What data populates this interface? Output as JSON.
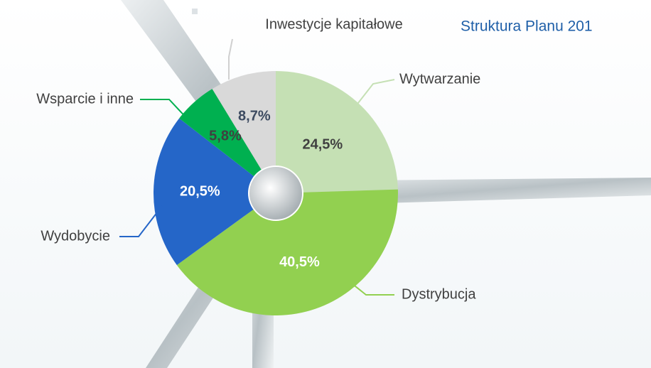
{
  "chart_data": {
    "type": "pie",
    "title": "Struktura Planu 201",
    "categories": [
      "Wytwarzanie",
      "Dystrybucja",
      "Wydobycie",
      "Wsparcie i inne",
      "Inwestycje kapitałowe"
    ],
    "values": [
      24.5,
      40.5,
      20.5,
      5.8,
      8.7
    ],
    "value_labels": [
      "24,5%",
      "40,5%",
      "20,5%",
      "5,8%",
      "8,7%"
    ],
    "colors": [
      "#c5e0b4",
      "#92d050",
      "#2566c8",
      "#00b050",
      "#d9d9d9"
    ]
  }
}
